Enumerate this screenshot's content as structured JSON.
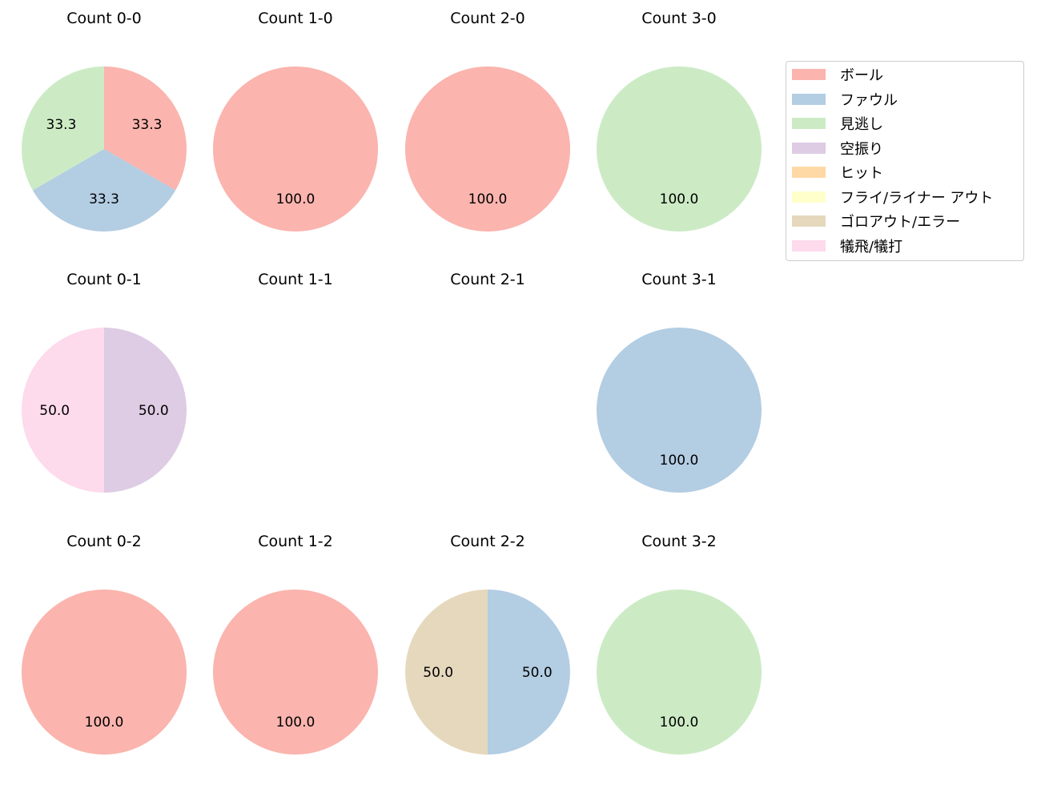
{
  "colors": {
    "ボール": "#fbb4ae",
    "ファウル": "#b3cde3",
    "見逃し": "#ccebc5",
    "空振り": "#decbe4",
    "ヒット": "#fed9a6",
    "フライ/ライナー アウト": "#ffffcc",
    "ゴロアウト/エラー": "#e5d8bd",
    "犠飛/犠打": "#fddaec"
  },
  "chart_data": [
    {
      "type": "pie",
      "title": "Count 0-0",
      "labels": [
        "ボール",
        "ファウル",
        "見逃し"
      ],
      "values": [
        33.3,
        33.3,
        33.3
      ]
    },
    {
      "type": "pie",
      "title": "Count 1-0",
      "labels": [
        "ボール"
      ],
      "values": [
        100.0
      ]
    },
    {
      "type": "pie",
      "title": "Count 2-0",
      "labels": [
        "ボール"
      ],
      "values": [
        100.0
      ]
    },
    {
      "type": "pie",
      "title": "Count 3-0",
      "labels": [
        "見逃し"
      ],
      "values": [
        100.0
      ]
    },
    {
      "type": "pie",
      "title": "Count 0-1",
      "labels": [
        "空振り",
        "犠飛/犠打"
      ],
      "values": [
        50.0,
        50.0
      ]
    },
    {
      "type": "pie",
      "title": "Count 1-1",
      "labels": [],
      "values": []
    },
    {
      "type": "pie",
      "title": "Count 2-1",
      "labels": [],
      "values": []
    },
    {
      "type": "pie",
      "title": "Count 3-1",
      "labels": [
        "ファウル"
      ],
      "values": [
        100.0
      ]
    },
    {
      "type": "pie",
      "title": "Count 0-2",
      "labels": [
        "ボール"
      ],
      "values": [
        100.0
      ]
    },
    {
      "type": "pie",
      "title": "Count 1-2",
      "labels": [
        "ボール"
      ],
      "values": [
        100.0
      ]
    },
    {
      "type": "pie",
      "title": "Count 2-2",
      "labels": [
        "ファウル",
        "ゴロアウト/エラー"
      ],
      "values": [
        50.0,
        50.0
      ]
    },
    {
      "type": "pie",
      "title": "Count 3-2",
      "labels": [
        "見逃し"
      ],
      "values": [
        100.0
      ]
    }
  ],
  "legend": {
    "placement": "top-right",
    "items": [
      "ボール",
      "ファウル",
      "見逃し",
      "空振り",
      "ヒット",
      "フライ/ライナー アウト",
      "ゴロアウト/エラー",
      "犠飛/犠打"
    ]
  }
}
